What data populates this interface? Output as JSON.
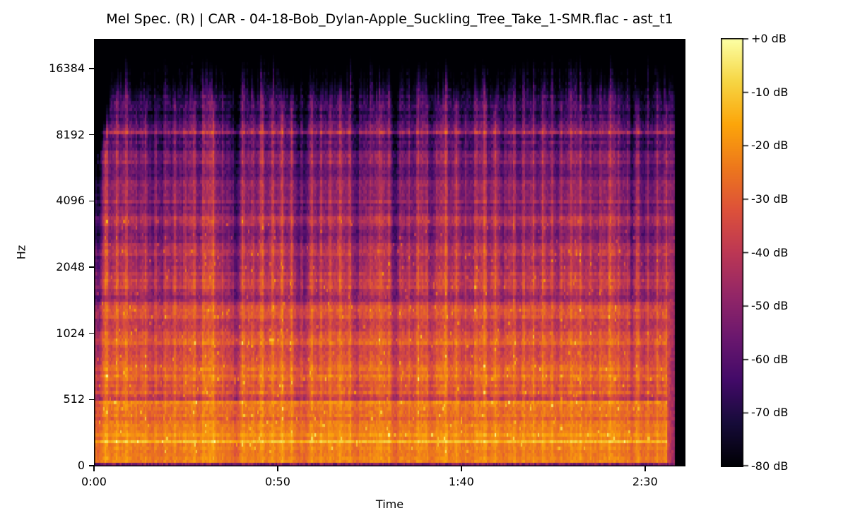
{
  "chart_data": {
    "type": "heatmap",
    "variant": "mel_spectrogram",
    "title": "Mel Spec. (R) | CAR - 04-18-Bob_Dylan-Apple_Suckling_Tree_Take_1-SMR.flac - ast_t1",
    "xlabel": "Time",
    "ylabel": "Hz",
    "x_ticks": [
      {
        "label": "0:00",
        "seconds": 0
      },
      {
        "label": "0:50",
        "seconds": 50
      },
      {
        "label": "1:40",
        "seconds": 100
      },
      {
        "label": "2:30",
        "seconds": 150
      }
    ],
    "x_axis_end_seconds": 161,
    "audio_end_seconds": 158,
    "y_ticks": [
      {
        "label": "16384",
        "hz": 16384
      },
      {
        "label": "8192",
        "hz": 8192
      },
      {
        "label": "4096",
        "hz": 4096
      },
      {
        "label": "2048",
        "hz": 2048
      },
      {
        "label": "1024",
        "hz": 1024
      },
      {
        "label": "512",
        "hz": 512
      },
      {
        "label": "0",
        "hz": 0
      }
    ],
    "freq_axis_scale": "mel (octave ticks equally spaced, 0 Hz pinned at bottom, ~22 kHz at top)",
    "value_axis": {
      "unit": "dB",
      "min": -80,
      "max": 0
    },
    "colorbar_tick_labels": [
      "+0 dB",
      "-10 dB",
      "-20 dB",
      "-30 dB",
      "-40 dB",
      "-50 dB",
      "-60 dB",
      "-70 dB",
      "-80 dB"
    ],
    "colormap": {
      "name": "inferno",
      "stops": [
        "#000004",
        "#160b39",
        "#420a68",
        "#6a176e",
        "#932667",
        "#bc3754",
        "#dd513a",
        "#ed781c",
        "#fca50a",
        "#f6d543",
        "#fcffa4"
      ]
    },
    "content_summary": {
      "description": "Dense full-band music recording. Strong low-frequency energy (orange/yellow, -10 to -30 dB) below ~1 kHz fading to purple (-50 to -65 dB) near 8 kHz and to silence (-80 dB, black) above ~16 kHz. Rhythmic vertical striations throughout; audio ends at ~2:38 with a short purple reverb tail followed by black.",
      "bright_horizontal_lines": [
        {
          "hz": 8192,
          "approx_db": -42
        },
        {
          "hz": 170,
          "approx_db": -12
        }
      ],
      "dark_horizontal_bands_hz": [
        512,
        3000
      ],
      "quiet_gaps": [
        {
          "seconds": 16,
          "depth": 0.35
        },
        {
          "seconds": 38,
          "depth": 0.7
        },
        {
          "seconds": 56,
          "depth": 0.4
        },
        {
          "seconds": 71,
          "depth": 0.35
        },
        {
          "seconds": 82,
          "depth": 0.65
        },
        {
          "seconds": 100,
          "depth": 0.35
        },
        {
          "seconds": 124,
          "depth": 0.45
        },
        {
          "seconds": 146,
          "depth": 0.55
        }
      ],
      "intro_fade_seconds": 3,
      "outro_fade_seconds": 2
    }
  }
}
